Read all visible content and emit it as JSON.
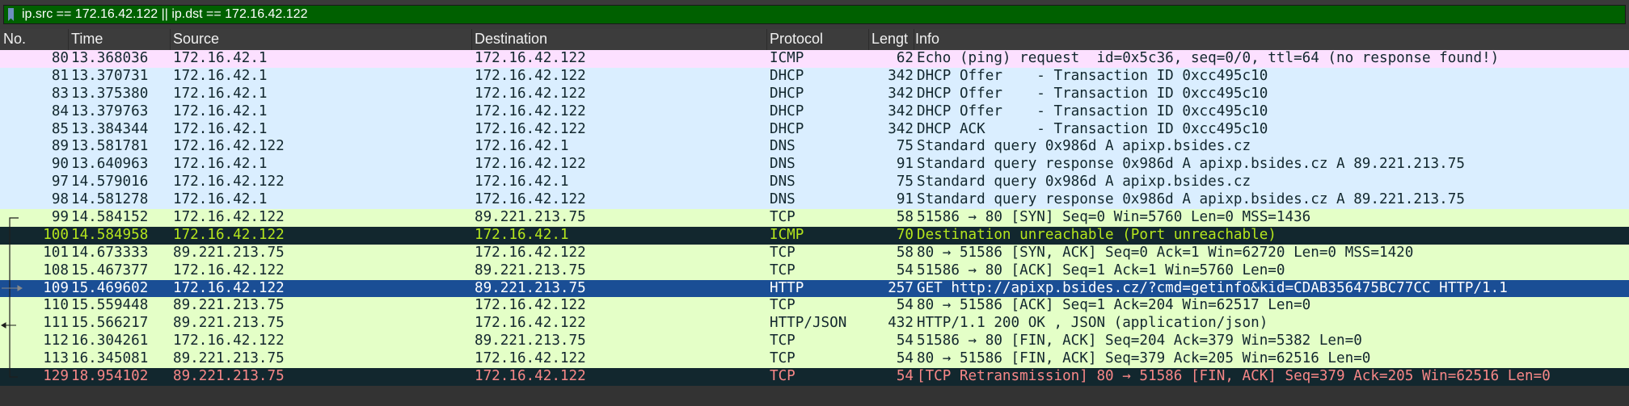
{
  "filter": {
    "value": "ip.src == 172.16.42.122 || ip.dst == 172.16.42.122",
    "bg": "#006000"
  },
  "columns": [
    "No.",
    "Time",
    "Source",
    "Destination",
    "Protocol",
    "Lengt",
    "Info"
  ],
  "colors": {
    "icmp": "#fce0ff",
    "udp": "#daeeff",
    "tcp": "#e4ffc7",
    "error_bg": "#12272e",
    "error_green_text": "#b5e61d",
    "error_red_text": "#f78787",
    "selected": "#1a4e95"
  },
  "packets": [
    {
      "no": "80",
      "time": "13.368036",
      "src": "172.16.42.1",
      "dst": "172.16.42.122",
      "proto": "ICMP",
      "len": "62",
      "info": "Echo (ping) request  id=0x5c36, seq=0/0, ttl=64 (no response found!)",
      "style": "icmp"
    },
    {
      "no": "81",
      "time": "13.370731",
      "src": "172.16.42.1",
      "dst": "172.16.42.122",
      "proto": "DHCP",
      "len": "342",
      "info": "DHCP Offer    - Transaction ID 0xcc495c10",
      "style": "udp"
    },
    {
      "no": "83",
      "time": "13.375380",
      "src": "172.16.42.1",
      "dst": "172.16.42.122",
      "proto": "DHCP",
      "len": "342",
      "info": "DHCP Offer    - Transaction ID 0xcc495c10",
      "style": "udp"
    },
    {
      "no": "84",
      "time": "13.379763",
      "src": "172.16.42.1",
      "dst": "172.16.42.122",
      "proto": "DHCP",
      "len": "342",
      "info": "DHCP Offer    - Transaction ID 0xcc495c10",
      "style": "udp"
    },
    {
      "no": "85",
      "time": "13.384344",
      "src": "172.16.42.1",
      "dst": "172.16.42.122",
      "proto": "DHCP",
      "len": "342",
      "info": "DHCP ACK      - Transaction ID 0xcc495c10",
      "style": "udp"
    },
    {
      "no": "89",
      "time": "13.581781",
      "src": "172.16.42.122",
      "dst": "172.16.42.1",
      "proto": "DNS",
      "len": "75",
      "info": "Standard query 0x986d A apixp.bsides.cz",
      "style": "udp"
    },
    {
      "no": "90",
      "time": "13.640963",
      "src": "172.16.42.1",
      "dst": "172.16.42.122",
      "proto": "DNS",
      "len": "91",
      "info": "Standard query response 0x986d A apixp.bsides.cz A 89.221.213.75",
      "style": "udp"
    },
    {
      "no": "97",
      "time": "14.579016",
      "src": "172.16.42.122",
      "dst": "172.16.42.1",
      "proto": "DNS",
      "len": "75",
      "info": "Standard query 0x986d A apixp.bsides.cz",
      "style": "udp"
    },
    {
      "no": "98",
      "time": "14.581278",
      "src": "172.16.42.1",
      "dst": "172.16.42.122",
      "proto": "DNS",
      "len": "91",
      "info": "Standard query response 0x986d A apixp.bsides.cz A 89.221.213.75",
      "style": "udp"
    },
    {
      "no": "99",
      "time": "14.584152",
      "src": "172.16.42.122",
      "dst": "89.221.213.75",
      "proto": "TCP",
      "len": "58",
      "info": "51586 → 80 [SYN] Seq=0 Win=5760 Len=0 MSS=1436",
      "style": "tcp"
    },
    {
      "no": "100",
      "time": "14.584958",
      "src": "172.16.42.122",
      "dst": "172.16.42.1",
      "proto": "ICMP",
      "len": "70",
      "info": "Destination unreachable (Port unreachable)",
      "style": "error_green"
    },
    {
      "no": "101",
      "time": "14.673333",
      "src": "89.221.213.75",
      "dst": "172.16.42.122",
      "proto": "TCP",
      "len": "58",
      "info": "80 → 51586 [SYN, ACK] Seq=0 Ack=1 Win=62720 Len=0 MSS=1420",
      "style": "tcp"
    },
    {
      "no": "108",
      "time": "15.467377",
      "src": "172.16.42.122",
      "dst": "89.221.213.75",
      "proto": "TCP",
      "len": "54",
      "info": "51586 → 80 [ACK] Seq=1 Ack=1 Win=5760 Len=0",
      "style": "tcp"
    },
    {
      "no": "109",
      "time": "15.469602",
      "src": "172.16.42.122",
      "dst": "89.221.213.75",
      "proto": "HTTP",
      "len": "257",
      "info": "GET http://apixp.bsides.cz/?cmd=getinfo&kid=CDAB356475BC77CC HTTP/1.1",
      "style": "selected"
    },
    {
      "no": "110",
      "time": "15.559448",
      "src": "89.221.213.75",
      "dst": "172.16.42.122",
      "proto": "TCP",
      "len": "54",
      "info": "80 → 51586 [ACK] Seq=1 Ack=204 Win=62517 Len=0",
      "style": "tcp"
    },
    {
      "no": "111",
      "time": "15.566217",
      "src": "89.221.213.75",
      "dst": "172.16.42.122",
      "proto": "HTTP/JSON",
      "len": "432",
      "info": "HTTP/1.1 200 OK , JSON (application/json)",
      "style": "tcp"
    },
    {
      "no": "112",
      "time": "16.304261",
      "src": "172.16.42.122",
      "dst": "89.221.213.75",
      "proto": "TCP",
      "len": "54",
      "info": "51586 → 80 [FIN, ACK] Seq=204 Ack=379 Win=5382 Len=0",
      "style": "tcp"
    },
    {
      "no": "113",
      "time": "16.345081",
      "src": "89.221.213.75",
      "dst": "172.16.42.122",
      "proto": "TCP",
      "len": "54",
      "info": "80 → 51586 [FIN, ACK] Seq=379 Ack=205 Win=62516 Len=0",
      "style": "tcp"
    },
    {
      "no": "129",
      "time": "18.954102",
      "src": "89.221.213.75",
      "dst": "172.16.42.122",
      "proto": "TCP",
      "len": "54",
      "info": "[TCP Retransmission] 80 → 51586 [FIN, ACK] Seq=379 Ack=205 Win=62516 Len=0",
      "style": "error_red"
    }
  ]
}
